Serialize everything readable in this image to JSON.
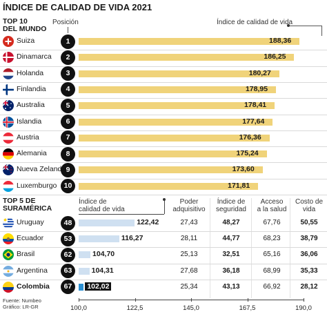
{
  "title": "ÍNDICE DE CALIDAD DE VIDA 2021",
  "top10": {
    "heading_line1": "TOP 10",
    "heading_line2": "DEL MUNDO",
    "pos_header": "Posición",
    "index_header": "Índice de calidad de vida"
  },
  "top5": {
    "heading_line1": "TOP 5 DE",
    "heading_line2": "SURAMÉRICA",
    "headers": {
      "index_1": "Índice de",
      "index_2": "calidad de vida",
      "purchasing_1": "Poder",
      "purchasing_2": "adquisitivo",
      "safety_1": "Índice de",
      "safety_2": "seguridad",
      "health_1": "Acceso",
      "health_2": "a la salud",
      "cost_1": "Costo de",
      "cost_2": "vida"
    }
  },
  "chart_data": {
    "type": "bar",
    "orientation": "horizontal",
    "xlim": [
      100.0,
      190.0
    ],
    "xticks": [
      "100,0",
      "122,5",
      "145,0",
      "167,5",
      "190,0"
    ],
    "world": [
      {
        "pos": "1",
        "country": "Suiza",
        "value": 188.36,
        "label": "188,36"
      },
      {
        "pos": "2",
        "country": "Dinamarca",
        "value": 186.25,
        "label": "186,25"
      },
      {
        "pos": "3",
        "country": "Holanda",
        "value": 180.27,
        "label": "180,27"
      },
      {
        "pos": "4",
        "country": "Finlandia",
        "value": 178.95,
        "label": "178,95"
      },
      {
        "pos": "5",
        "country": "Australia",
        "value": 178.41,
        "label": "178,41"
      },
      {
        "pos": "6",
        "country": "Islandia",
        "value": 177.64,
        "label": "177,64"
      },
      {
        "pos": "7",
        "country": "Austria",
        "value": 176.36,
        "label": "176,36"
      },
      {
        "pos": "8",
        "country": "Alemania",
        "value": 175.24,
        "label": "175,24"
      },
      {
        "pos": "9",
        "country": "Nueva Zelanda",
        "value": 173.6,
        "label": "173,60"
      },
      {
        "pos": "10",
        "country": "Luxemburgo",
        "value": 171.81,
        "label": "171,81"
      }
    ],
    "southamerica": [
      {
        "pos": "48",
        "country": "Uruguay",
        "value": 122.42,
        "label": "122,42",
        "purchasing": "27,43",
        "safety": "48,27",
        "health": "67,76",
        "cost": "50,55"
      },
      {
        "pos": "53",
        "country": "Ecuador",
        "value": 116.27,
        "label": "116,27",
        "purchasing": "28,11",
        "safety": "44,77",
        "health": "68,23",
        "cost": "38,79"
      },
      {
        "pos": "62",
        "country": "Brasil",
        "value": 104.7,
        "label": "104,70",
        "purchasing": "25,13",
        "safety": "32,51",
        "health": "65,16",
        "cost": "36,06"
      },
      {
        "pos": "63",
        "country": "Argentina",
        "value": 104.31,
        "label": "104,31",
        "purchasing": "27,68",
        "safety": "36,18",
        "health": "68,99",
        "cost": "35,33"
      },
      {
        "pos": "67",
        "country": "Colombia",
        "value": 102.02,
        "label": "102,02",
        "purchasing": "25,34",
        "safety": "43,13",
        "health": "66,92",
        "cost": "28,12",
        "highlight": true
      }
    ],
    "colors": {
      "world_bar": "#f0d37a",
      "sa_bar": "#cfe0f1",
      "highlight_bar": "#2b8fd1"
    }
  },
  "source_line1": "Fuente: Numbeo",
  "source_line2": "Gráfico: LR-GR"
}
